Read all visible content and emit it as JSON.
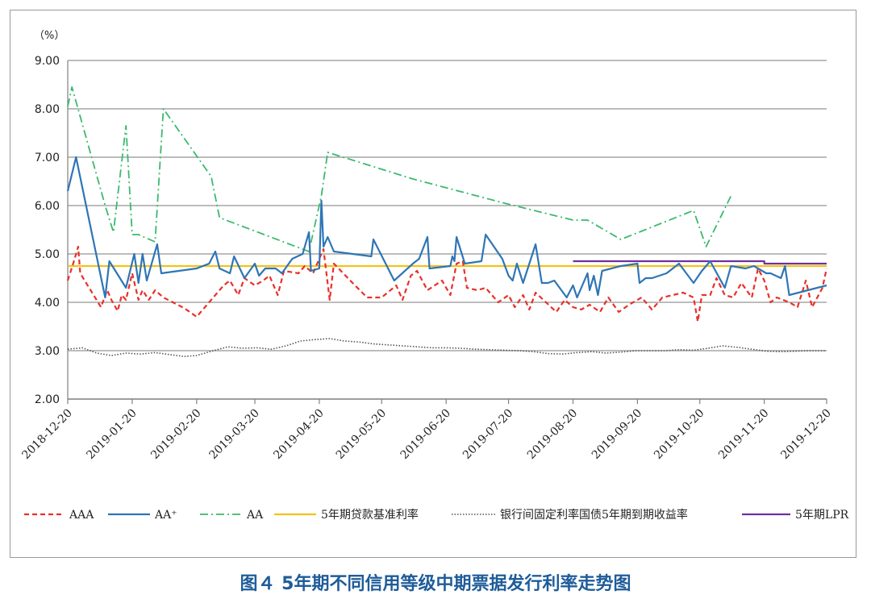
{
  "caption": "图４ 5年期不同信用等级中期票据发行利率走势图",
  "chart_data": {
    "type": "line",
    "title": "",
    "ylabel": "（%）",
    "xlabel": "",
    "ylim": [
      2.0,
      9.0
    ],
    "yticks": [
      "2.00",
      "3.00",
      "4.00",
      "5.00",
      "6.00",
      "7.00",
      "8.00",
      "9.00"
    ],
    "xlim": [
      "2018-12-20",
      "2019-12-20"
    ],
    "xticks": [
      "2018-12-20",
      "2019-01-20",
      "2019-02-20",
      "2019-03-20",
      "2019-04-20",
      "2019-05-20",
      "2019-06-20",
      "2019-07-20",
      "2019-08-20",
      "2019-09-20",
      "2019-10-20",
      "2019-11-20",
      "2019-12-20"
    ],
    "grid": true,
    "legend_position": "bottom",
    "series": [
      {
        "name": "AAA",
        "color": "#e8312a",
        "style": "dashed",
        "points": [
          [
            "2018-12-20",
            4.45
          ],
          [
            "2018-12-23",
            4.85
          ],
          [
            "2018-12-25",
            5.15
          ],
          [
            "2018-12-26",
            4.6
          ],
          [
            "2019-01-05",
            3.9
          ],
          [
            "2019-01-08",
            4.25
          ],
          [
            "2019-01-10",
            4.05
          ],
          [
            "2019-01-13",
            3.82
          ],
          [
            "2019-01-15",
            4.15
          ],
          [
            "2019-01-17",
            4.05
          ],
          [
            "2019-01-20",
            4.6
          ],
          [
            "2019-01-23",
            4.05
          ],
          [
            "2019-01-25",
            4.25
          ],
          [
            "2019-01-28",
            4.05
          ],
          [
            "2019-01-31",
            4.25
          ],
          [
            "2019-02-04",
            4.1
          ],
          [
            "2019-02-14",
            3.88
          ],
          [
            "2019-02-20",
            3.7
          ],
          [
            "2019-02-26",
            4.0
          ],
          [
            "2019-03-01",
            4.15
          ],
          [
            "2019-03-05",
            4.35
          ],
          [
            "2019-03-08",
            4.45
          ],
          [
            "2019-03-12",
            4.15
          ],
          [
            "2019-03-15",
            4.5
          ],
          [
            "2019-03-20",
            4.35
          ],
          [
            "2019-03-24",
            4.45
          ],
          [
            "2019-03-27",
            4.55
          ],
          [
            "2019-03-31",
            4.15
          ],
          [
            "2019-04-03",
            4.65
          ],
          [
            "2019-04-10",
            4.6
          ],
          [
            "2019-04-13",
            4.75
          ],
          [
            "2019-04-17",
            4.6
          ],
          [
            "2019-04-22",
            5.1
          ],
          [
            "2019-04-25",
            4.05
          ],
          [
            "2019-04-27",
            4.8
          ],
          [
            "2019-05-06",
            4.4
          ],
          [
            "2019-05-13",
            4.1
          ],
          [
            "2019-05-20",
            4.1
          ],
          [
            "2019-05-27",
            4.35
          ],
          [
            "2019-05-30",
            4.05
          ],
          [
            "2019-06-03",
            4.55
          ],
          [
            "2019-06-06",
            4.65
          ],
          [
            "2019-06-11",
            4.25
          ],
          [
            "2019-06-18",
            4.45
          ],
          [
            "2019-06-22",
            4.15
          ],
          [
            "2019-06-25",
            4.8
          ],
          [
            "2019-06-28",
            4.85
          ],
          [
            "2019-06-30",
            4.3
          ],
          [
            "2019-07-05",
            4.25
          ],
          [
            "2019-07-09",
            4.3
          ],
          [
            "2019-07-15",
            4.0
          ],
          [
            "2019-07-20",
            4.15
          ],
          [
            "2019-07-23",
            3.9
          ],
          [
            "2019-07-27",
            4.15
          ],
          [
            "2019-07-30",
            3.85
          ],
          [
            "2019-08-02",
            4.2
          ],
          [
            "2019-08-07",
            4.0
          ],
          [
            "2019-08-12",
            3.8
          ],
          [
            "2019-08-16",
            4.05
          ],
          [
            "2019-08-20",
            3.9
          ],
          [
            "2019-08-24",
            3.85
          ],
          [
            "2019-08-28",
            3.95
          ],
          [
            "2019-09-02",
            3.8
          ],
          [
            "2019-09-06",
            4.1
          ],
          [
            "2019-09-11",
            3.8
          ],
          [
            "2019-09-16",
            3.95
          ],
          [
            "2019-09-22",
            4.1
          ],
          [
            "2019-09-27",
            3.85
          ],
          [
            "2019-10-02",
            4.1
          ],
          [
            "2019-10-12",
            4.2
          ],
          [
            "2019-10-17",
            4.1
          ],
          [
            "2019-10-19",
            3.6
          ],
          [
            "2019-10-21",
            4.15
          ],
          [
            "2019-10-25",
            4.15
          ],
          [
            "2019-10-28",
            4.5
          ],
          [
            "2019-11-01",
            4.15
          ],
          [
            "2019-11-05",
            4.1
          ],
          [
            "2019-11-09",
            4.4
          ],
          [
            "2019-11-14",
            4.1
          ],
          [
            "2019-11-17",
            4.7
          ],
          [
            "2019-11-20",
            4.45
          ],
          [
            "2019-11-23",
            4.0
          ],
          [
            "2019-11-26",
            4.1
          ],
          [
            "2019-12-02",
            4.0
          ],
          [
            "2019-12-06",
            3.9
          ],
          [
            "2019-12-10",
            4.45
          ],
          [
            "2019-12-13",
            3.9
          ],
          [
            "2019-12-18",
            4.3
          ],
          [
            "2019-12-20",
            4.7
          ]
        ]
      },
      {
        "name": "AA⁺",
        "color": "#2e75b6",
        "style": "solid",
        "points": [
          [
            "2018-12-20",
            6.3
          ],
          [
            "2018-12-24",
            7.0
          ],
          [
            "2019-01-07",
            4.1
          ],
          [
            "2019-01-09",
            4.85
          ],
          [
            "2019-01-17",
            4.3
          ],
          [
            "2019-01-21",
            5.0
          ],
          [
            "2019-01-23",
            4.4
          ],
          [
            "2019-01-25",
            5.0
          ],
          [
            "2019-01-27",
            4.45
          ],
          [
            "2019-02-01",
            5.2
          ],
          [
            "2019-02-03",
            4.6
          ],
          [
            "2019-02-20",
            4.7
          ],
          [
            "2019-02-26",
            4.8
          ],
          [
            "2019-03-01",
            5.05
          ],
          [
            "2019-03-03",
            4.7
          ],
          [
            "2019-03-08",
            4.6
          ],
          [
            "2019-03-10",
            4.95
          ],
          [
            "2019-03-15",
            4.5
          ],
          [
            "2019-03-20",
            4.8
          ],
          [
            "2019-03-22",
            4.55
          ],
          [
            "2019-03-25",
            4.7
          ],
          [
            "2019-03-30",
            4.7
          ],
          [
            "2019-04-02",
            4.6
          ],
          [
            "2019-04-07",
            4.9
          ],
          [
            "2019-04-12",
            5.0
          ],
          [
            "2019-04-15",
            5.45
          ],
          [
            "2019-04-16",
            4.65
          ],
          [
            "2019-04-20",
            4.7
          ],
          [
            "2019-04-21",
            6.1
          ],
          [
            "2019-04-22",
            5.15
          ],
          [
            "2019-04-24",
            5.35
          ],
          [
            "2019-04-27",
            5.05
          ],
          [
            "2019-05-15",
            4.95
          ],
          [
            "2019-05-16",
            5.3
          ],
          [
            "2019-05-26",
            4.45
          ],
          [
            "2019-06-04",
            4.8
          ],
          [
            "2019-06-07",
            4.9
          ],
          [
            "2019-06-11",
            5.35
          ],
          [
            "2019-06-12",
            4.7
          ],
          [
            "2019-06-22",
            4.75
          ],
          [
            "2019-06-23",
            4.95
          ],
          [
            "2019-06-24",
            4.85
          ],
          [
            "2019-06-25",
            5.35
          ],
          [
            "2019-06-29",
            4.8
          ],
          [
            "2019-07-07",
            4.85
          ],
          [
            "2019-07-09",
            5.4
          ],
          [
            "2019-07-17",
            4.9
          ],
          [
            "2019-07-20",
            4.55
          ],
          [
            "2019-07-22",
            4.45
          ],
          [
            "2019-07-24",
            4.8
          ],
          [
            "2019-07-27",
            4.4
          ],
          [
            "2019-08-02",
            5.2
          ],
          [
            "2019-08-05",
            4.4
          ],
          [
            "2019-08-08",
            4.4
          ],
          [
            "2019-08-11",
            4.45
          ],
          [
            "2019-08-17",
            4.1
          ],
          [
            "2019-08-20",
            4.35
          ],
          [
            "2019-08-22",
            4.1
          ],
          [
            "2019-08-27",
            4.6
          ],
          [
            "2019-08-28",
            4.25
          ],
          [
            "2019-08-30",
            4.55
          ],
          [
            "2019-09-01",
            4.15
          ],
          [
            "2019-09-03",
            4.65
          ],
          [
            "2019-09-12",
            4.75
          ],
          [
            "2019-09-20",
            4.8
          ],
          [
            "2019-09-21",
            4.4
          ],
          [
            "2019-09-24",
            4.5
          ],
          [
            "2019-09-27",
            4.5
          ],
          [
            "2019-10-04",
            4.6
          ],
          [
            "2019-10-10",
            4.8
          ],
          [
            "2019-10-17",
            4.4
          ],
          [
            "2019-10-21",
            4.65
          ],
          [
            "2019-10-25",
            4.85
          ],
          [
            "2019-11-01",
            4.3
          ],
          [
            "2019-11-04",
            4.75
          ],
          [
            "2019-11-11",
            4.7
          ],
          [
            "2019-11-15",
            4.75
          ],
          [
            "2019-11-21",
            4.6
          ],
          [
            "2019-11-23",
            4.6
          ],
          [
            "2019-11-28",
            4.5
          ],
          [
            "2019-11-30",
            4.75
          ],
          [
            "2019-12-02",
            4.15
          ],
          [
            "2019-12-20",
            4.35
          ]
        ]
      },
      {
        "name": "AA",
        "color": "#3aba6c",
        "style": "dash-dot",
        "points": [
          [
            "2018-12-20",
            8.05
          ],
          [
            "2018-12-22",
            8.45
          ],
          [
            "2019-01-07",
            6.0
          ],
          [
            "2019-01-11",
            5.45
          ],
          [
            "2019-01-17",
            7.65
          ],
          [
            "2019-01-20",
            5.4
          ],
          [
            "2019-01-23",
            5.4
          ],
          [
            "2019-01-31",
            5.25
          ],
          [
            "2019-02-04",
            8.0
          ],
          [
            "2019-02-27",
            6.6
          ],
          [
            "2019-03-03",
            5.75
          ],
          [
            "2019-04-15",
            5.05
          ],
          [
            "2019-04-21",
            6.2
          ],
          [
            "2019-04-24",
            7.1
          ],
          [
            "2019-06-04",
            6.55
          ],
          [
            "2019-07-18",
            6.05
          ],
          [
            "2019-08-20",
            5.7
          ],
          [
            "2019-08-27",
            5.7
          ],
          [
            "2019-09-12",
            5.3
          ],
          [
            "2019-10-17",
            5.9
          ],
          [
            "2019-10-23",
            5.15
          ],
          [
            "2019-11-04",
            6.2
          ]
        ]
      },
      {
        "name": "5年期贷款基准利率",
        "color": "#f2c21b",
        "style": "solid",
        "points": [
          [
            "2018-12-20",
            4.75
          ],
          [
            "2019-12-20",
            4.75
          ]
        ]
      },
      {
        "name": "银行间固定利率国债5年期到期收益率",
        "color": "#555555",
        "style": "dotted",
        "points": [
          [
            "2018-12-20",
            3.03
          ],
          [
            "2018-12-27",
            3.06
          ],
          [
            "2019-01-03",
            2.95
          ],
          [
            "2019-01-10",
            2.9
          ],
          [
            "2019-01-17",
            2.95
          ],
          [
            "2019-01-24",
            2.93
          ],
          [
            "2019-01-31",
            2.96
          ],
          [
            "2019-02-07",
            2.92
          ],
          [
            "2019-02-14",
            2.88
          ],
          [
            "2019-02-20",
            2.9
          ],
          [
            "2019-02-28",
            3.0
          ],
          [
            "2019-03-07",
            3.08
          ],
          [
            "2019-03-14",
            3.05
          ],
          [
            "2019-03-21",
            3.06
          ],
          [
            "2019-03-28",
            3.03
          ],
          [
            "2019-04-04",
            3.1
          ],
          [
            "2019-04-11",
            3.2
          ],
          [
            "2019-04-18",
            3.23
          ],
          [
            "2019-04-25",
            3.25
          ],
          [
            "2019-05-02",
            3.2
          ],
          [
            "2019-05-09",
            3.18
          ],
          [
            "2019-05-16",
            3.14
          ],
          [
            "2019-05-23",
            3.12
          ],
          [
            "2019-05-30",
            3.1
          ],
          [
            "2019-06-06",
            3.08
          ],
          [
            "2019-06-13",
            3.06
          ],
          [
            "2019-06-20",
            3.06
          ],
          [
            "2019-06-27",
            3.05
          ],
          [
            "2019-07-04",
            3.03
          ],
          [
            "2019-07-11",
            3.02
          ],
          [
            "2019-07-18",
            3.01
          ],
          [
            "2019-07-25",
            3.0
          ],
          [
            "2019-08-01",
            2.98
          ],
          [
            "2019-08-08",
            2.94
          ],
          [
            "2019-08-15",
            2.93
          ],
          [
            "2019-08-22",
            2.96
          ],
          [
            "2019-08-29",
            2.98
          ],
          [
            "2019-09-05",
            2.95
          ],
          [
            "2019-09-12",
            2.97
          ],
          [
            "2019-09-19",
            3.0
          ],
          [
            "2019-09-26",
            3.0
          ],
          [
            "2019-10-03",
            3.0
          ],
          [
            "2019-10-10",
            3.02
          ],
          [
            "2019-10-17",
            3.01
          ],
          [
            "2019-10-24",
            3.05
          ],
          [
            "2019-10-31",
            3.1
          ],
          [
            "2019-11-07",
            3.07
          ],
          [
            "2019-11-14",
            3.03
          ],
          [
            "2019-11-21",
            2.99
          ],
          [
            "2019-11-28",
            2.98
          ],
          [
            "2019-12-05",
            2.99
          ],
          [
            "2019-12-12",
            3.0
          ],
          [
            "2019-12-20",
            3.0
          ]
        ]
      },
      {
        "name": "5年期LPR",
        "color": "#7030a0",
        "style": "solid",
        "points": [
          [
            "2019-08-20",
            4.85
          ],
          [
            "2019-11-20",
            4.85
          ],
          [
            "2019-11-20",
            4.8
          ],
          [
            "2019-12-20",
            4.8
          ]
        ]
      }
    ]
  }
}
